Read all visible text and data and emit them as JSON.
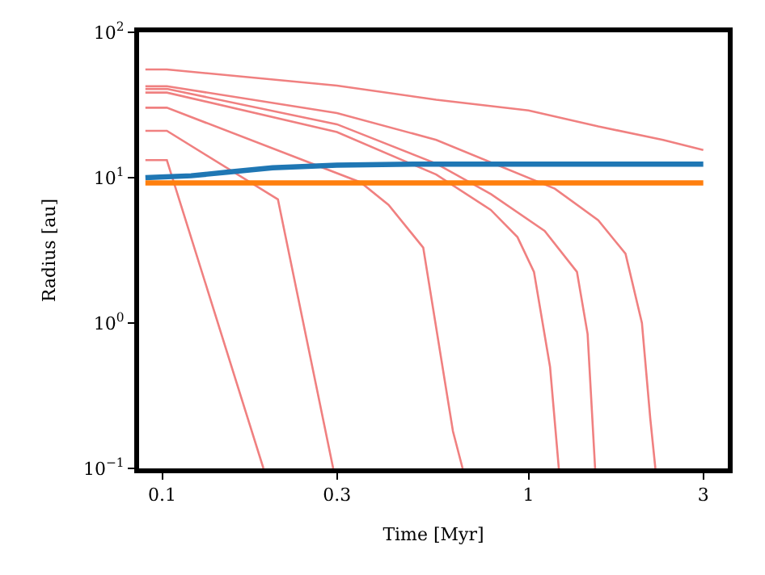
{
  "chart_data": {
    "type": "line",
    "xlabel": "Time [Myr]",
    "ylabel": "Radius [au]",
    "log": "xy",
    "marker": "none",
    "line_style": "solid",
    "xlim": [
      0.0865,
      3.5
    ],
    "xticks": [
      0.1,
      0.3,
      1,
      3
    ],
    "ylim": [
      0.1,
      100
    ],
    "yticks": [
      {
        "value": 0.1,
        "label": "10$^{−1}$"
      },
      {
        "value": 1,
        "label": "10$^{0}$"
      },
      {
        "value": 10,
        "label": "10$^{1}$"
      },
      {
        "value": 100,
        "label": "10$^{2}$"
      }
    ],
    "series": [
      {
        "color": "#f08080",
        "x": [
          0.09,
          0.103,
          0.3,
          0.56,
          1.0,
          1.55,
          2.33,
          3.0
        ],
        "values": [
          55.5,
          55.5,
          43,
          34.4,
          29,
          22.5,
          18.2,
          15.5
        ]
      },
      {
        "color": "#f08080",
        "x": [
          0.09,
          0.103,
          0.3,
          0.56,
          1.18,
          1.55,
          1.84,
          2.04,
          2.15,
          2.22
        ],
        "values": [
          42.6,
          42.6,
          27.8,
          18.2,
          8.4,
          5.1,
          3.0,
          1.0,
          0.22,
          0.1
        ]
      },
      {
        "color": "#f08080",
        "x": [
          0.09,
          0.103,
          0.3,
          0.56,
          0.79,
          1.107,
          1.356,
          1.45,
          1.52
        ],
        "values": [
          40.8,
          40.8,
          23.3,
          12.5,
          7.7,
          4.3,
          2.25,
          0.84,
          0.1
        ]
      },
      {
        "color": "#f08080",
        "x": [
          0.09,
          0.103,
          0.3,
          0.56,
          0.789,
          0.933,
          1.035,
          1.145,
          1.21
        ],
        "values": [
          38.5,
          38.5,
          20.6,
          10.5,
          6.0,
          3.9,
          2.25,
          0.5,
          0.1
        ]
      },
      {
        "color": "#f08080",
        "x": [
          0.09,
          0.103,
          0.348,
          0.415,
          0.516,
          0.622,
          0.661
        ],
        "values": [
          30.3,
          30.3,
          9.3,
          6.5,
          3.3,
          0.18,
          0.1
        ]
      },
      {
        "color": "#f08080",
        "x": [
          0.09,
          0.103,
          0.207,
          0.293
        ],
        "values": [
          21,
          21,
          7.1,
          0.1
        ]
      },
      {
        "color": "#f08080",
        "x": [
          0.09,
          0.103,
          0.189
        ],
        "values": [
          13.2,
          13.2,
          0.1
        ]
      },
      {
        "color": "#1f77b4",
        "x": [
          0.09,
          0.12,
          0.15,
          0.2,
          0.3,
          0.5,
          3.0
        ],
        "values": [
          10,
          10.3,
          10.9,
          11.7,
          12.2,
          12.4,
          12.4
        ]
      },
      {
        "color": "#ff7f0e",
        "x": [
          0.09,
          3.0
        ],
        "values": [
          9.2,
          9.2
        ]
      }
    ]
  }
}
